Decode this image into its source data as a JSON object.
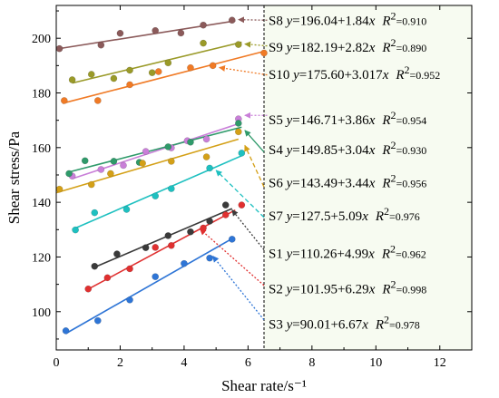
{
  "chart_data": {
    "type": "scatter",
    "xlabel": "Shear rate/s⁻¹",
    "ylabel": "Shear stress/Pa",
    "xlim": [
      0,
      13
    ],
    "ylim": [
      86,
      212
    ],
    "xticks": [
      0,
      2,
      4,
      6,
      8,
      10,
      12
    ],
    "yticks": [
      100,
      120,
      140,
      160,
      180,
      200
    ],
    "annotation_region_x": 6.5,
    "annotation_region_color": "#f7fbf1",
    "series": [
      {
        "name": "S8",
        "color": "#8b5a5a",
        "fit": {
          "a": 196.04,
          "b": 1.84,
          "x0": 0,
          "x1": 5.6
        },
        "x": [
          0.1,
          1.4,
          2.0,
          3.1,
          3.9,
          4.6,
          5.5
        ],
        "y": [
          196.2,
          197.5,
          201.8,
          202.8,
          201.9,
          204.8,
          206.6
        ],
        "label_name": "S8",
        "label_eq": "y=196.04+1.84x",
        "label_r2": "0.910",
        "label_y": 206.6,
        "arrow_tail": [
          6.6,
          206.6
        ],
        "arrow_head": [
          5.7,
          206.8
        ],
        "arrow_dash": "2,2"
      },
      {
        "name": "S9",
        "color": "#9a9a28",
        "fit": {
          "a": 182.19,
          "b": 2.82,
          "x0": 0.5,
          "x1": 5.8
        },
        "x": [
          0.5,
          1.1,
          1.8,
          2.3,
          3.0,
          3.5,
          4.6,
          5.7
        ],
        "y": [
          184.8,
          186.8,
          185.3,
          188.3,
          187.4,
          191.0,
          198.2,
          197.7
        ],
        "label_name": "S9",
        "label_eq": "y=182.19+2.82x",
        "label_r2": "0.890",
        "label_y": 196.8,
        "arrow_tail": [
          6.6,
          197.2
        ],
        "arrow_head": [
          5.9,
          197.9
        ],
        "arrow_dash": "2,2"
      },
      {
        "name": "S10",
        "color": "#f07a25",
        "fit": {
          "a": 175.6,
          "b": 3.017,
          "x0": 0.2,
          "x1": 6.5
        },
        "x": [
          0.25,
          1.3,
          2.3,
          3.2,
          4.2,
          4.9,
          6.5
        ],
        "y": [
          177.2,
          177.2,
          183.0,
          187.8,
          189.2,
          190.0,
          194.6
        ],
        "label_name": "S10",
        "label_eq": "y=175.60+3.017x",
        "label_r2": "0.952",
        "label_y": 186.8,
        "arrow_tail": [
          6.6,
          186.6
        ],
        "arrow_head": [
          5.1,
          189.3
        ],
        "arrow_dash": "2,2"
      },
      {
        "name": "S5",
        "color": "#c97fd8",
        "fit": {
          "a": 146.71,
          "b": 3.86,
          "x0": 0.5,
          "x1": 5.8
        },
        "x": [
          0.5,
          1.4,
          2.1,
          2.8,
          3.6,
          4.1,
          4.7,
          5.7
        ],
        "y": [
          149.6,
          152.0,
          153.5,
          158.6,
          159.9,
          162.5,
          163.1,
          170.5
        ],
        "label_name": "S5",
        "label_eq": "y=146.71+3.86x",
        "label_r2": "0.954",
        "label_y": 170.3,
        "arrow_tail": [
          6.6,
          171.8
        ],
        "arrow_head": [
          5.9,
          171.8
        ],
        "arrow_dash": "2,2"
      },
      {
        "name": "S4",
        "color": "#2f9a6a",
        "fit": {
          "a": 149.85,
          "b": 3.04,
          "x0": 0.4,
          "x1": 5.8
        },
        "x": [
          0.4,
          0.9,
          1.8,
          2.6,
          3.5,
          4.2,
          5.7
        ],
        "y": [
          150.5,
          155.2,
          155.0,
          154.6,
          160.3,
          162.0,
          168.9
        ],
        "label_name": "S4",
        "label_eq": "y=149.85+3.04x",
        "label_r2": "0.930",
        "label_y": 159.3,
        "arrow_tail": [
          6.5,
          158.4
        ],
        "arrow_head": [
          5.9,
          166.3
        ],
        "arrow_dash": ""
      },
      {
        "name": "S6",
        "color": "#d4a017",
        "fit": {
          "a": 143.49,
          "b": 3.44,
          "x0": 0.0,
          "x1": 5.7
        },
        "x": [
          0.1,
          1.1,
          1.7,
          2.7,
          3.6,
          4.7,
          5.7
        ],
        "y": [
          144.8,
          146.5,
          150.5,
          154.3,
          155.0,
          156.6,
          165.8
        ],
        "label_name": "S6",
        "label_eq": "y=143.49+3.44x",
        "label_r2": "0.956",
        "label_y": 147.2,
        "arrow_tail": [
          6.5,
          145.6
        ],
        "arrow_head": [
          5.9,
          160.8
        ],
        "arrow_dash": "5,3"
      },
      {
        "name": "S7",
        "color": "#1ec0c0",
        "fit": {
          "a": 127.5,
          "b": 5.09,
          "x0": 0.5,
          "x1": 5.8
        },
        "x": [
          0.6,
          1.2,
          2.2,
          3.1,
          3.6,
          4.8,
          5.8
        ],
        "y": [
          129.9,
          136.2,
          137.4,
          142.3,
          145.0,
          152.5,
          158.0
        ],
        "label_name": "S7",
        "label_eq": "y=127.5+5.09x",
        "label_r2": "0.976",
        "label_y": 135.0,
        "arrow_tail": [
          6.5,
          134.5
        ],
        "arrow_head": [
          5.0,
          151.7
        ],
        "arrow_dash": "5,3"
      },
      {
        "name": "S1",
        "color": "#3a3a3a",
        "fit": {
          "a": 110.26,
          "b": 4.99,
          "x0": 1.2,
          "x1": 5.5
        },
        "x": [
          1.2,
          1.9,
          2.8,
          3.5,
          4.2,
          4.8,
          5.3
        ],
        "y": [
          116.6,
          121.1,
          123.4,
          127.8,
          129.2,
          133.1,
          139.0
        ],
        "label_name": "S1",
        "label_eq": "y=110.26+4.99x",
        "label_r2": "0.962",
        "label_y": 121.3,
        "arrow_tail": [
          6.5,
          122.6
        ],
        "arrow_head": [
          5.5,
          137.2
        ],
        "arrow_dash": "2,2"
      },
      {
        "name": "S2",
        "color": "#e03030",
        "fit": {
          "a": 101.95,
          "b": 6.29,
          "x0": 1.0,
          "x1": 5.6
        },
        "x": [
          1.0,
          1.6,
          2.3,
          3.1,
          3.6,
          4.6,
          5.3,
          5.8
        ],
        "y": [
          108.3,
          112.4,
          115.7,
          123.5,
          124.2,
          130.6,
          135.4,
          139.0
        ],
        "label_name": "S2",
        "label_eq": "y=101.95+6.29x",
        "label_r2": "0.998",
        "label_y": 108.4,
        "arrow_tail": [
          6.5,
          109.6
        ],
        "arrow_head": [
          4.5,
          130.2
        ],
        "arrow_dash": "2,2"
      },
      {
        "name": "S3",
        "color": "#2e75d6",
        "fit": {
          "a": 90.01,
          "b": 6.67,
          "x0": 0.3,
          "x1": 5.5
        },
        "x": [
          0.3,
          1.3,
          2.3,
          3.1,
          4.0,
          4.8,
          5.5
        ],
        "y": [
          93.0,
          96.7,
          104.3,
          112.8,
          117.6,
          119.6,
          126.5
        ],
        "label_name": "S3",
        "label_eq": "y=90.01+6.67x",
        "label_r2": "0.978",
        "label_y": 95.5,
        "arrow_tail": [
          6.5,
          97.0
        ],
        "arrow_head": [
          4.9,
          120.3
        ],
        "arrow_dash": "2,2"
      }
    ]
  }
}
